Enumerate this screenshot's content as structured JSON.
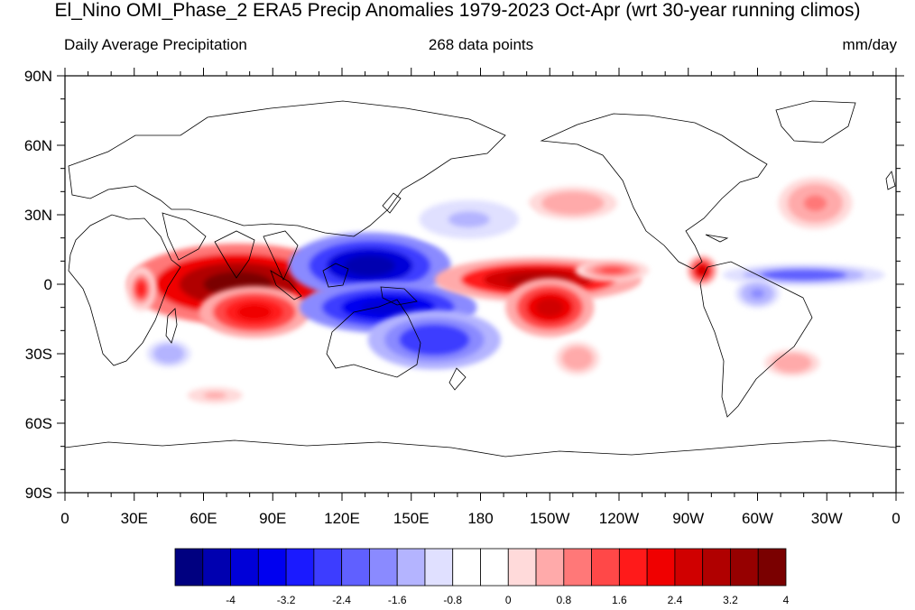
{
  "title": "El_Nino OMI_Phase_2 ERA5 Precip Anomalies 1979-2023 Oct-Apr (wrt 30-year running climos)",
  "subtitle_left": "Daily Average Precipitation",
  "subtitle_center": "268 data points",
  "subtitle_right": "mm/day",
  "lat_labels": [
    "90N",
    "60N",
    "30N",
    "0",
    "30S",
    "60S",
    "90S"
  ],
  "lon_labels": [
    "0",
    "30E",
    "60E",
    "90E",
    "120E",
    "150E",
    "180",
    "150W",
    "120W",
    "90W",
    "60W",
    "30W",
    "0"
  ],
  "colorbar": {
    "colors": [
      "#000080",
      "#0000b0",
      "#0000d8",
      "#0000f0",
      "#1a1aff",
      "#3d3dff",
      "#6060ff",
      "#8a8aff",
      "#b4b4ff",
      "#e0e0ff",
      "#ffffff",
      "#ffffff",
      "#ffdada",
      "#ffaaaa",
      "#ff7878",
      "#ff4848",
      "#ff1a1a",
      "#f00000",
      "#d00000",
      "#b00000",
      "#960000",
      "#7a0000"
    ],
    "label_values": [
      "-4",
      "-3.2",
      "-2.4",
      "-1.6",
      "-0.8",
      "0",
      "0.8",
      "1.6",
      "2.4",
      "3.2",
      "4"
    ]
  },
  "anomalies": [
    {
      "name": "indian-ocean-wet",
      "lon": 75,
      "lat": 0,
      "rx": 30,
      "ry": 11,
      "value": 4.2
    },
    {
      "name": "indian-ocean-wet-south",
      "lon": 82,
      "lat": -12,
      "rx": 15,
      "ry": 7,
      "value": 2.8
    },
    {
      "name": "east-africa-wet",
      "lon": 33,
      "lat": -2,
      "rx": 4,
      "ry": 6,
      "value": 2.0
    },
    {
      "name": "west-pacific-dry-north",
      "lon": 132,
      "lat": 8,
      "rx": 22,
      "ry": 9,
      "value": -3.8
    },
    {
      "name": "maritime-continent-dry-south",
      "lon": 140,
      "lat": -10,
      "rx": 24,
      "ry": 7,
      "value": -3.6
    },
    {
      "name": "spcz-dry",
      "lon": 160,
      "lat": -24,
      "rx": 18,
      "ry": 8,
      "value": -2.4
    },
    {
      "name": "central-pacific-wet",
      "lon": 205,
      "lat": 2,
      "rx": 28,
      "ry": 6,
      "value": 3.4
    },
    {
      "name": "central-pacific-wet-south",
      "lon": 210,
      "lat": -10,
      "rx": 12,
      "ry": 8,
      "value": 3.0
    },
    {
      "name": "east-pacific-wet",
      "lon": 237,
      "lat": 6,
      "rx": 10,
      "ry": 3,
      "value": 1.6
    },
    {
      "name": "panama-wet",
      "lon": 276,
      "lat": 6,
      "rx": 4,
      "ry": 4,
      "value": 3.0
    },
    {
      "name": "atlantic-itcz-dry",
      "lon": 320,
      "lat": 4,
      "rx": 22,
      "ry": 3,
      "value": -2.0
    },
    {
      "name": "amazon-dry",
      "lon": 300,
      "lat": -4,
      "rx": 6,
      "ry": 4,
      "value": -1.4
    },
    {
      "name": "north-atlantic-wet",
      "lon": 325,
      "lat": 35,
      "rx": 10,
      "ry": 7,
      "value": 1.4
    },
    {
      "name": "north-pacific-wet",
      "lon": 220,
      "lat": 35,
      "rx": 16,
      "ry": 6,
      "value": 1.0
    },
    {
      "name": "north-pacific-dry",
      "lon": 175,
      "lat": 28,
      "rx": 18,
      "ry": 7,
      "value": -0.9
    },
    {
      "name": "south-pacific-wet",
      "lon": 222,
      "lat": -32,
      "rx": 8,
      "ry": 6,
      "value": 1.0
    },
    {
      "name": "south-atlantic-wet",
      "lon": 315,
      "lat": -34,
      "rx": 10,
      "ry": 5,
      "value": 1.0
    },
    {
      "name": "southern-indian-dry",
      "lon": 45,
      "lat": -30,
      "rx": 8,
      "ry": 5,
      "value": -1.0
    },
    {
      "name": "southern-ocean-wet",
      "lon": 65,
      "lat": -48,
      "rx": 10,
      "ry": 3,
      "value": 0.8
    }
  ]
}
